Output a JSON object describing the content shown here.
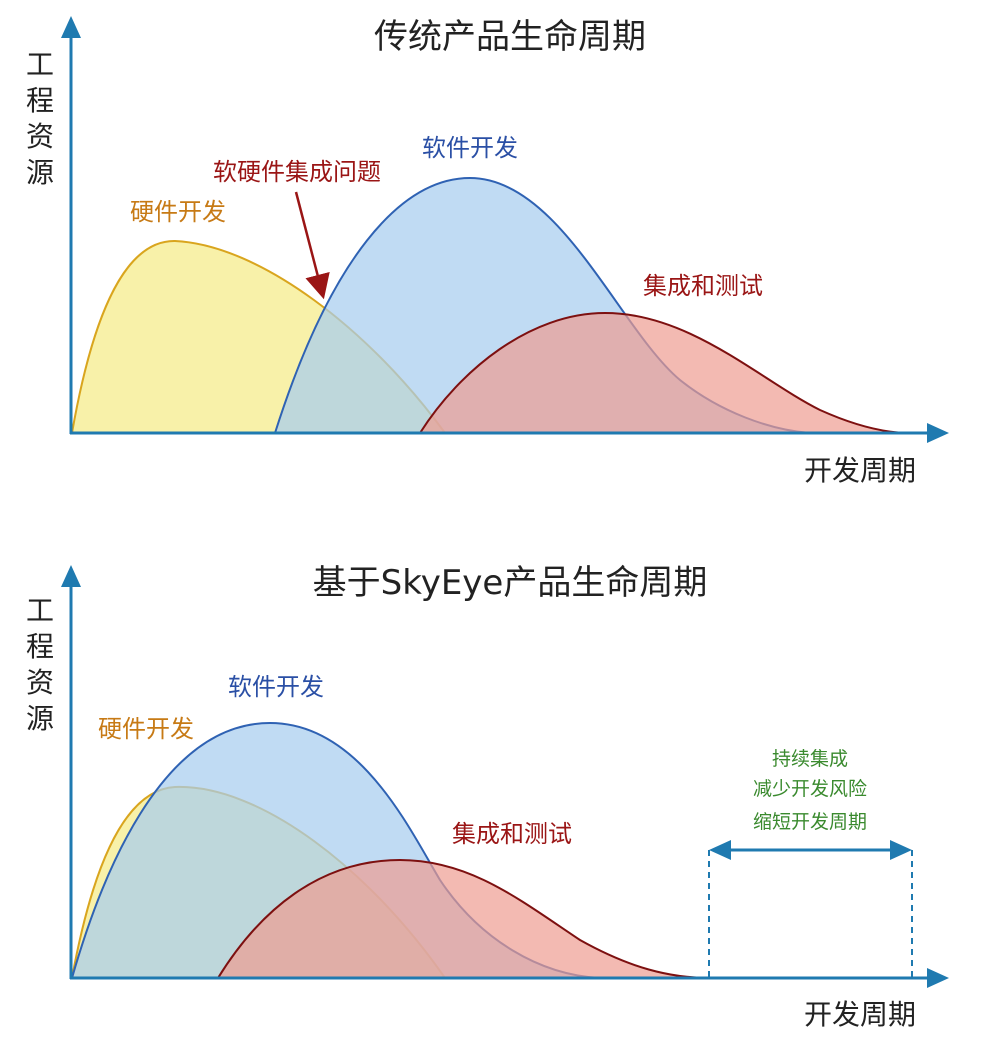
{
  "colors": {
    "axis": "#1f7ab0",
    "hardware_fill": "#f7f0a0",
    "hardware_line": "#d9a51e",
    "software_fill": "#b0d4ef",
    "software_line": "#2f62b3",
    "integration_fill": "#f0a89e",
    "integration_line": "#7d1010",
    "label_hardware": "#c77a15",
    "label_software": "#2a4fa5",
    "label_integration": "#9a1515",
    "note_green": "#3a8a2e"
  },
  "top": {
    "title": "传统产品生命周期",
    "y_label": [
      "工",
      "程",
      "资",
      "源"
    ],
    "x_label": "开发周期",
    "hardware_label": "硬件开发",
    "software_label": "软件开发",
    "integration_label": "集成和测试",
    "issue_label": "软硬件集成问题"
  },
  "bottom": {
    "title": "基于SkyEye产品生命周期",
    "y_label": [
      "工",
      "程",
      "资",
      "源"
    ],
    "x_label": "开发周期",
    "hardware_label": "硬件开发",
    "software_label": "软件开发",
    "integration_label": "集成和测试",
    "benefit_lines": [
      "持续集成",
      "减少开发风险",
      "缩短开发周期"
    ]
  }
}
